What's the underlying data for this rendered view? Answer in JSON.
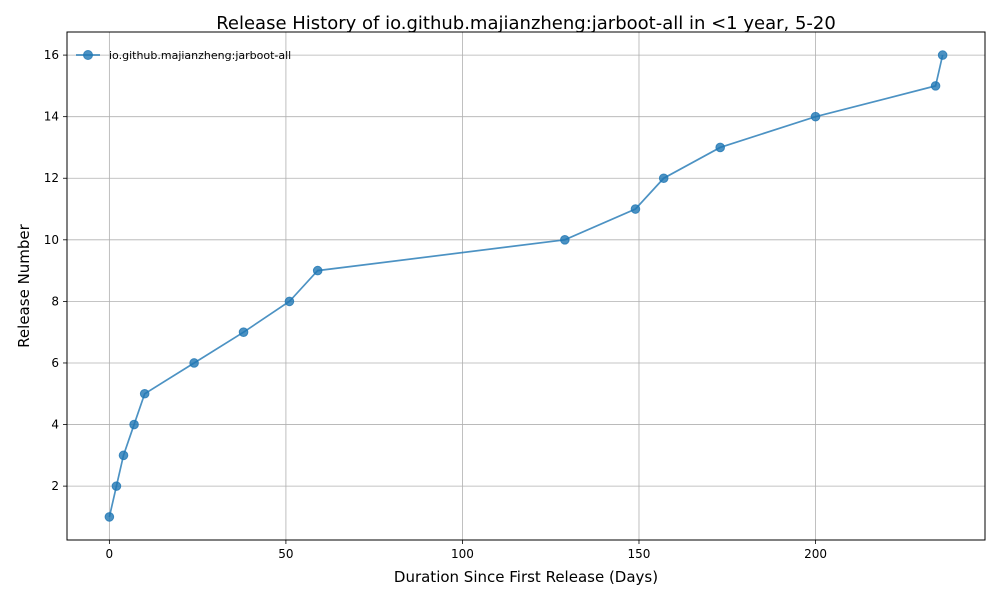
{
  "chart_data": {
    "type": "line",
    "title": "Release History of io.github.majianzheng:jarboot-all in <1 year, 5-20",
    "xlabel": "Duration Since First Release (Days)",
    "ylabel": "Release Number",
    "xlim": [
      -12,
      248
    ],
    "ylim": [
      0.25,
      16.75
    ],
    "xticks": [
      0,
      50,
      100,
      150,
      200
    ],
    "yticks": [
      2,
      4,
      6,
      8,
      10,
      12,
      14,
      16
    ],
    "grid": true,
    "legend_position": "top-left",
    "colors": {
      "series": "#1f77b4",
      "grid": "#b0b0b0"
    },
    "series": [
      {
        "name": "io.github.majianzheng:jarboot-all",
        "x": [
          0,
          2,
          4,
          7,
          10,
          24,
          38,
          51,
          59,
          129,
          149,
          157,
          173,
          200,
          234,
          236
        ],
        "y": [
          1,
          2,
          3,
          4,
          5,
          6,
          7,
          8,
          9,
          10,
          11,
          12,
          13,
          14,
          15,
          16
        ]
      }
    ]
  }
}
